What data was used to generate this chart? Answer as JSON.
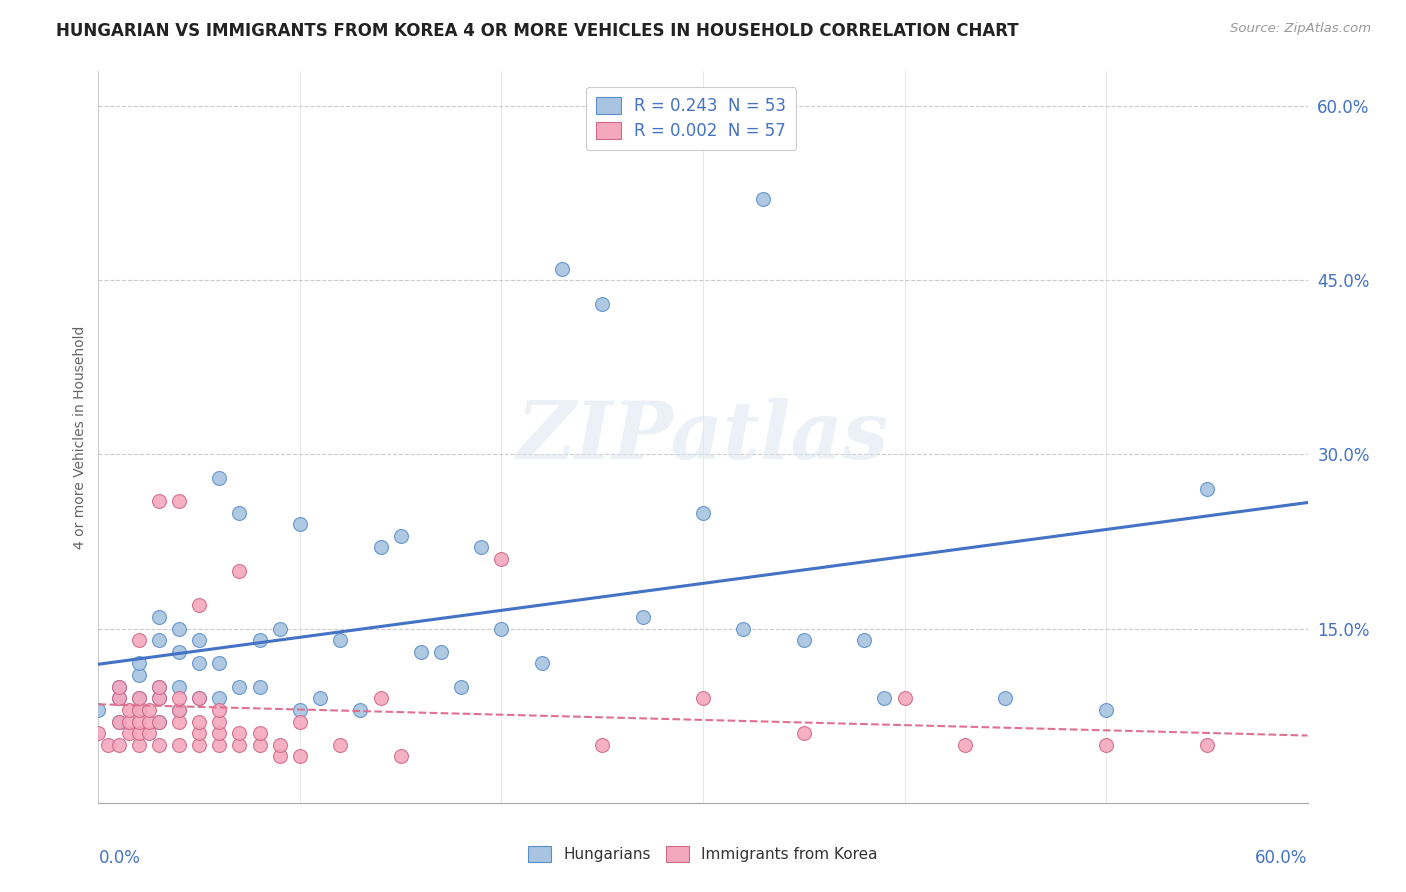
{
  "title": "HUNGARIAN VS IMMIGRANTS FROM KOREA 4 OR MORE VEHICLES IN HOUSEHOLD CORRELATION CHART",
  "source": "Source: ZipAtlas.com",
  "ylabel": "4 or more Vehicles in Household",
  "xlim": [
    0.0,
    0.6
  ],
  "ylim": [
    0.0,
    0.63
  ],
  "legend_r_hungarian": "R = 0.243",
  "legend_n_hungarian": "N = 53",
  "legend_r_korea": "R = 0.002",
  "legend_n_korea": "N = 57",
  "watermark": "ZIPatlas",
  "hungarian_color": "#a8c4e0",
  "korea_color": "#f4a8be",
  "hungarian_line_color": "#4472c4",
  "korea_line_color": "#e07090",
  "hungary_edge_color": "#5b8fc9",
  "korea_edge_color": "#d06888",
  "hungarian_scatter": [
    [
      0.0,
      0.08
    ],
    [
      0.01,
      0.07
    ],
    [
      0.01,
      0.09
    ],
    [
      0.01,
      0.1
    ],
    [
      0.02,
      0.08
    ],
    [
      0.02,
      0.09
    ],
    [
      0.02,
      0.11
    ],
    [
      0.02,
      0.12
    ],
    [
      0.03,
      0.07
    ],
    [
      0.03,
      0.09
    ],
    [
      0.03,
      0.1
    ],
    [
      0.03,
      0.14
    ],
    [
      0.03,
      0.16
    ],
    [
      0.04,
      0.08
    ],
    [
      0.04,
      0.1
    ],
    [
      0.04,
      0.13
    ],
    [
      0.04,
      0.15
    ],
    [
      0.05,
      0.09
    ],
    [
      0.05,
      0.12
    ],
    [
      0.05,
      0.14
    ],
    [
      0.06,
      0.09
    ],
    [
      0.06,
      0.12
    ],
    [
      0.06,
      0.28
    ],
    [
      0.07,
      0.1
    ],
    [
      0.07,
      0.25
    ],
    [
      0.08,
      0.1
    ],
    [
      0.08,
      0.14
    ],
    [
      0.09,
      0.15
    ],
    [
      0.1,
      0.08
    ],
    [
      0.1,
      0.24
    ],
    [
      0.11,
      0.09
    ],
    [
      0.12,
      0.14
    ],
    [
      0.13,
      0.08
    ],
    [
      0.14,
      0.22
    ],
    [
      0.15,
      0.23
    ],
    [
      0.16,
      0.13
    ],
    [
      0.17,
      0.13
    ],
    [
      0.18,
      0.1
    ],
    [
      0.19,
      0.22
    ],
    [
      0.2,
      0.15
    ],
    [
      0.22,
      0.12
    ],
    [
      0.23,
      0.46
    ],
    [
      0.25,
      0.43
    ],
    [
      0.27,
      0.16
    ],
    [
      0.3,
      0.25
    ],
    [
      0.32,
      0.15
    ],
    [
      0.33,
      0.52
    ],
    [
      0.35,
      0.14
    ],
    [
      0.38,
      0.14
    ],
    [
      0.39,
      0.09
    ],
    [
      0.45,
      0.09
    ],
    [
      0.5,
      0.08
    ],
    [
      0.55,
      0.27
    ]
  ],
  "korea_scatter": [
    [
      0.0,
      0.06
    ],
    [
      0.005,
      0.05
    ],
    [
      0.01,
      0.05
    ],
    [
      0.01,
      0.07
    ],
    [
      0.01,
      0.09
    ],
    [
      0.01,
      0.1
    ],
    [
      0.015,
      0.06
    ],
    [
      0.015,
      0.07
    ],
    [
      0.015,
      0.08
    ],
    [
      0.02,
      0.05
    ],
    [
      0.02,
      0.06
    ],
    [
      0.02,
      0.07
    ],
    [
      0.02,
      0.08
    ],
    [
      0.02,
      0.09
    ],
    [
      0.02,
      0.14
    ],
    [
      0.025,
      0.06
    ],
    [
      0.025,
      0.07
    ],
    [
      0.025,
      0.08
    ],
    [
      0.03,
      0.05
    ],
    [
      0.03,
      0.07
    ],
    [
      0.03,
      0.09
    ],
    [
      0.03,
      0.1
    ],
    [
      0.03,
      0.26
    ],
    [
      0.04,
      0.05
    ],
    [
      0.04,
      0.07
    ],
    [
      0.04,
      0.08
    ],
    [
      0.04,
      0.09
    ],
    [
      0.04,
      0.26
    ],
    [
      0.05,
      0.05
    ],
    [
      0.05,
      0.06
    ],
    [
      0.05,
      0.07
    ],
    [
      0.05,
      0.09
    ],
    [
      0.05,
      0.17
    ],
    [
      0.06,
      0.05
    ],
    [
      0.06,
      0.06
    ],
    [
      0.06,
      0.07
    ],
    [
      0.06,
      0.08
    ],
    [
      0.07,
      0.05
    ],
    [
      0.07,
      0.06
    ],
    [
      0.07,
      0.2
    ],
    [
      0.08,
      0.05
    ],
    [
      0.08,
      0.06
    ],
    [
      0.09,
      0.04
    ],
    [
      0.09,
      0.05
    ],
    [
      0.1,
      0.04
    ],
    [
      0.1,
      0.07
    ],
    [
      0.12,
      0.05
    ],
    [
      0.14,
      0.09
    ],
    [
      0.15,
      0.04
    ],
    [
      0.2,
      0.21
    ],
    [
      0.25,
      0.05
    ],
    [
      0.3,
      0.09
    ],
    [
      0.35,
      0.06
    ],
    [
      0.4,
      0.09
    ],
    [
      0.43,
      0.05
    ],
    [
      0.5,
      0.05
    ],
    [
      0.55,
      0.05
    ]
  ]
}
